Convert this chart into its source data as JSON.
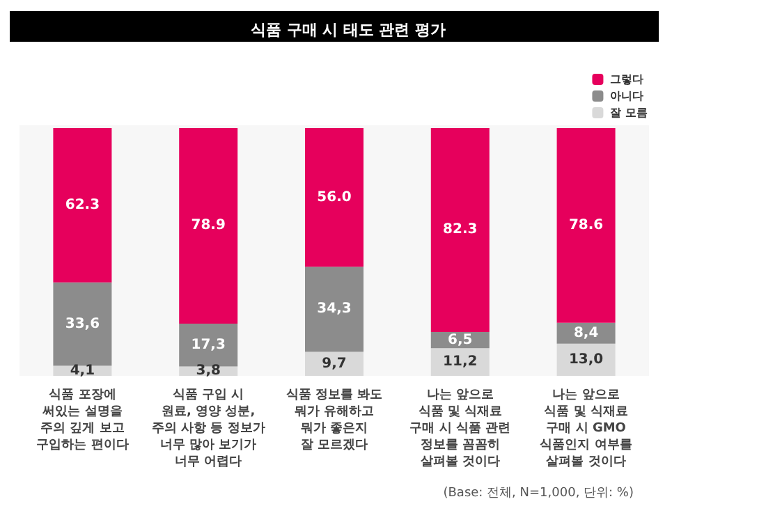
{
  "chart_data": {
    "type": "bar",
    "title": "식품 구매 시 태도 관련 평가",
    "categories": [
      "식품 포장에\n써있는 설명을\n주의 깊게 보고\n구입하는 편이다",
      "식품 구입 시\n원료, 영양 성분,\n주의 사항 등 정보가\n너무 많아 보기가\n너무 어렵다",
      "식품 정보를 봐도\n뭐가 유해하고\n뭐가 좋은지\n잘 모르겠다",
      "나는 앞으로\n식품 및 식재료\n구매 시 식품 관련\n정보를 꼼꼼히\n살펴볼 것이다",
      "나는 앞으로\n식품 및 식재료\n구매 시 GMO\n식품인지 여부를\n살펴볼 것이다"
    ],
    "series": [
      {
        "name": "잘 모름",
        "color": "#d9d9d9",
        "values": [
          4.1,
          3.8,
          9.7,
          11.2,
          13.0
        ],
        "value_labels": [
          "4,1",
          "3,8",
          "9,7",
          "11,2",
          "13,0"
        ]
      },
      {
        "name": "아니다",
        "color": "#8c8c8c",
        "values": [
          33.6,
          17.3,
          34.3,
          6.5,
          8.4
        ],
        "value_labels": [
          "33,6",
          "17,3",
          "34,3",
          "6,5",
          "8,4"
        ]
      },
      {
        "name": "그렇다",
        "color": "#e6005c",
        "values": [
          62.3,
          78.9,
          56.0,
          82.3,
          78.6
        ],
        "value_labels": [
          "62.3",
          "78.9",
          "56.0",
          "82.3",
          "78.6"
        ]
      }
    ],
    "stacked": true,
    "legend": "top right",
    "annotations": [
      "(Base: 전체, N=1,000, 단위: %)"
    ]
  }
}
